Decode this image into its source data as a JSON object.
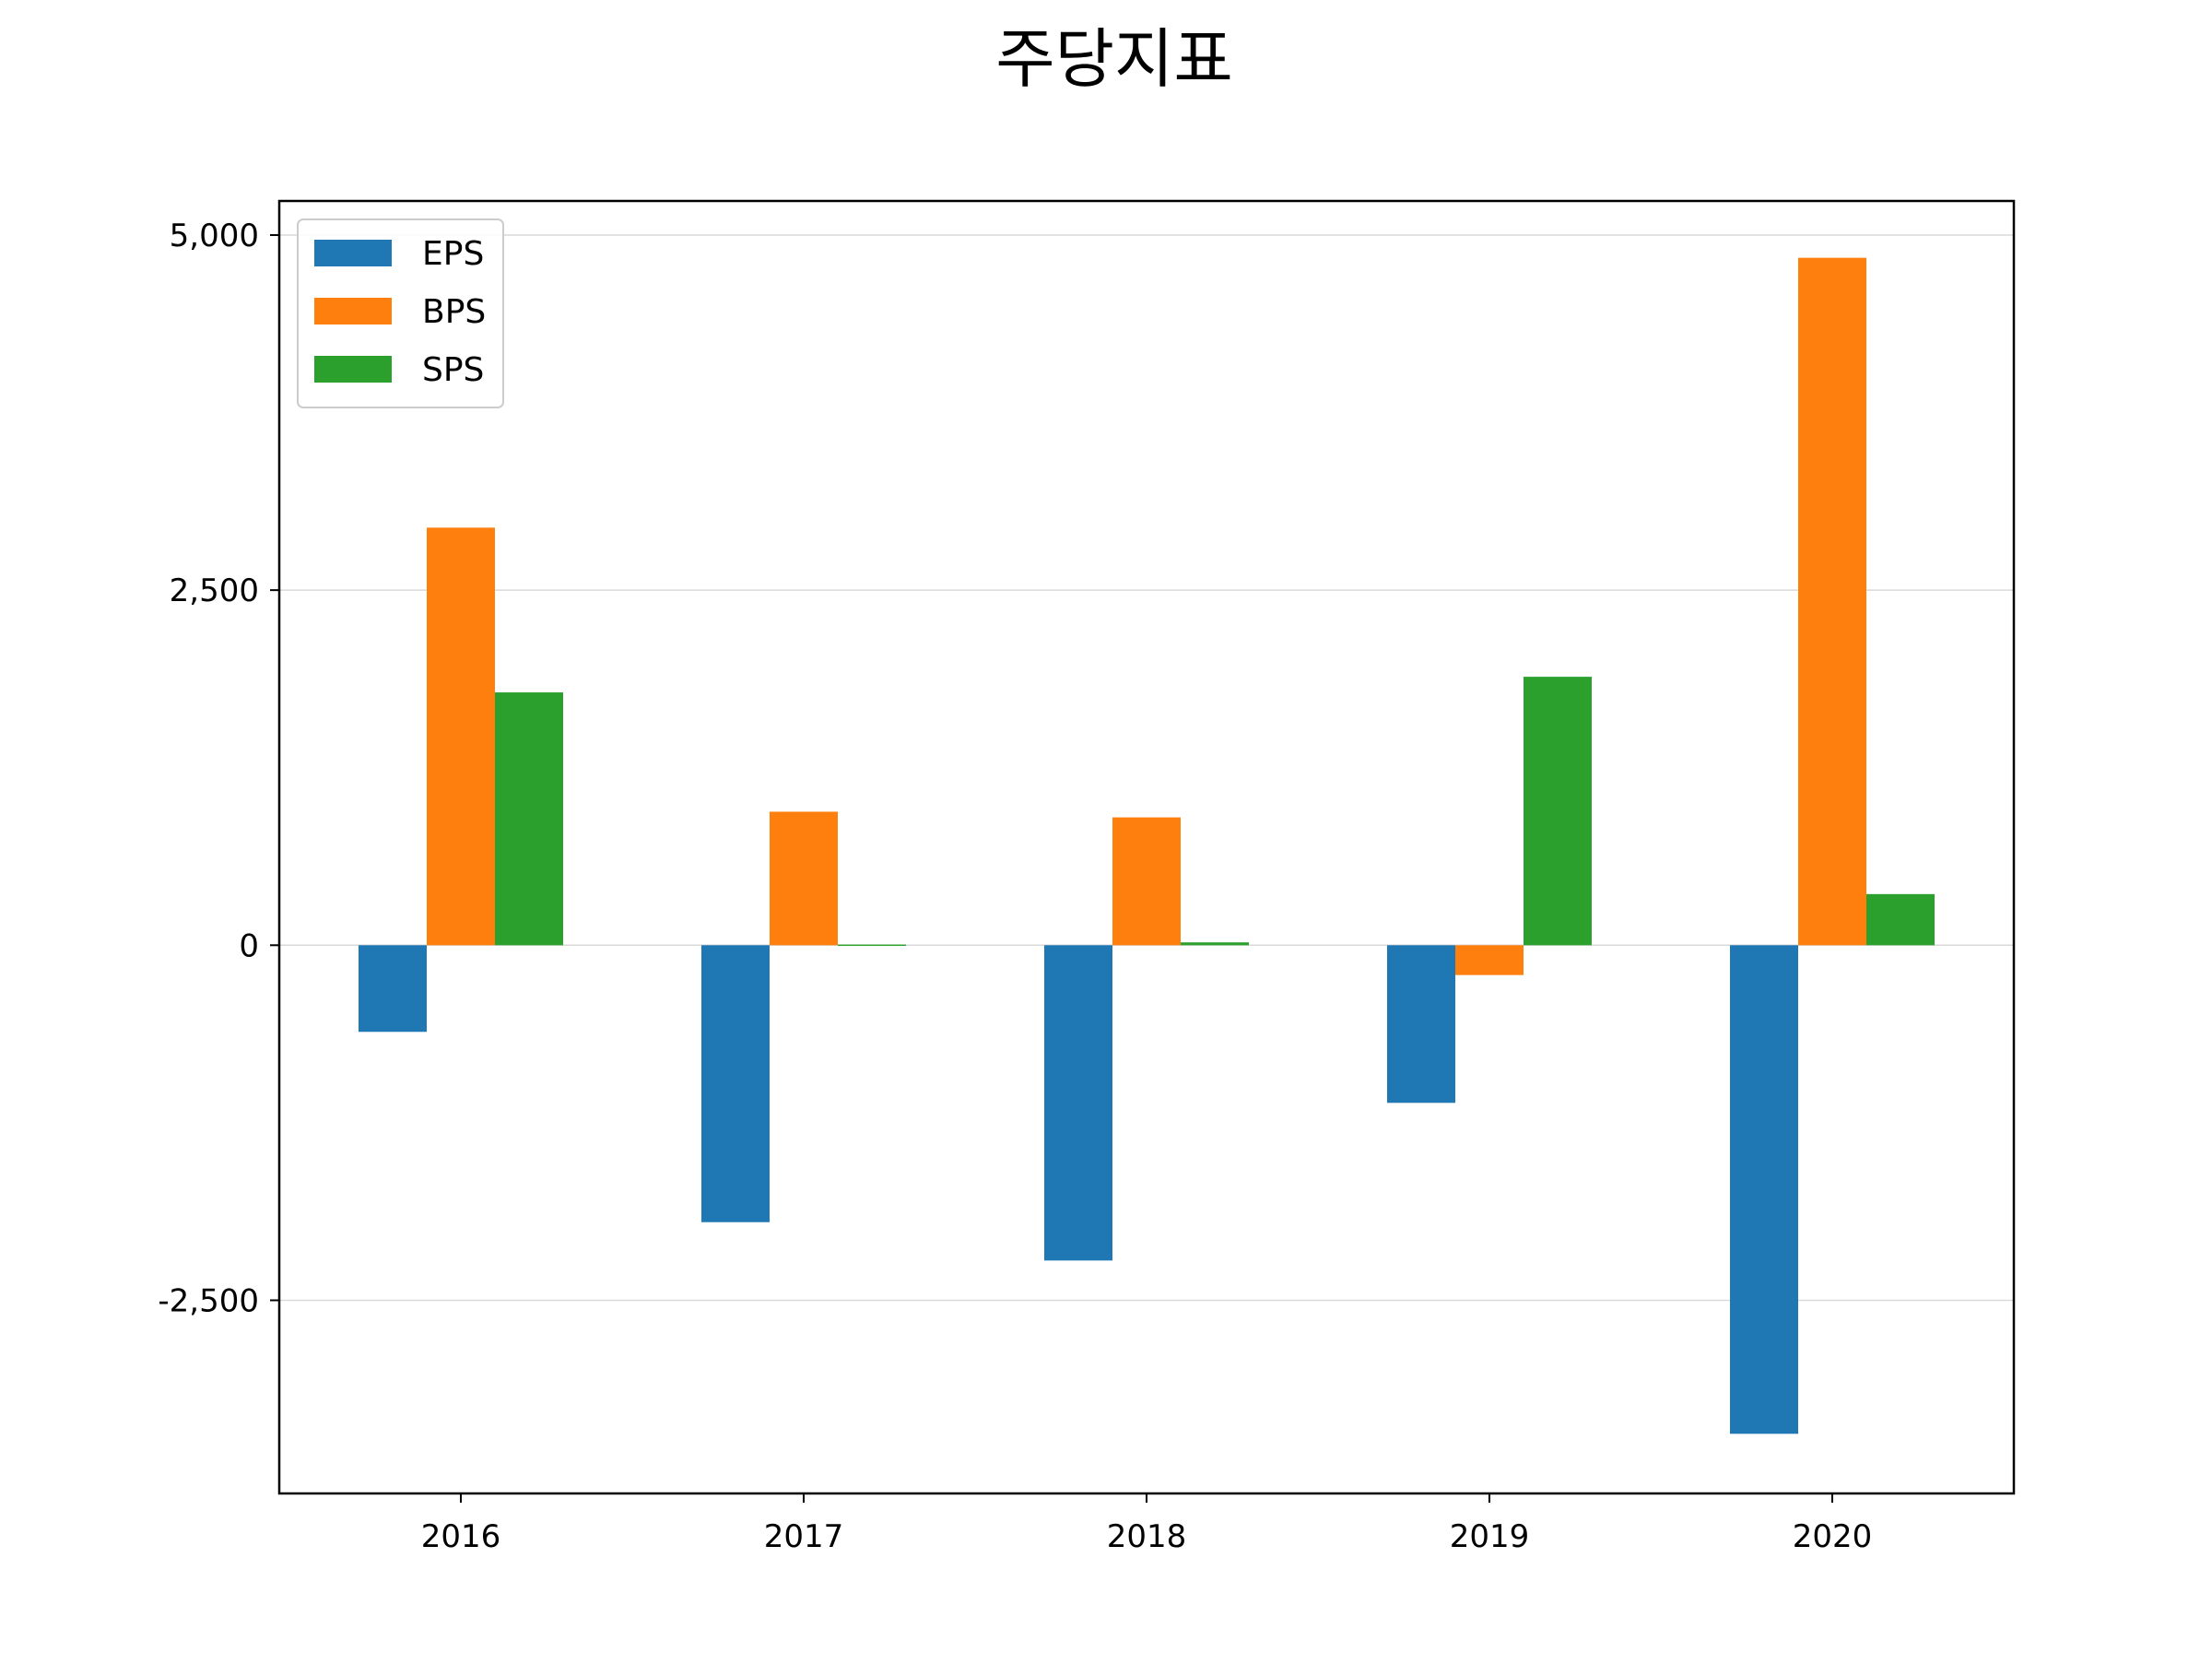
{
  "chart_data": {
    "type": "bar",
    "title": "주당지표",
    "xlabel": "",
    "ylabel": "",
    "categories": [
      "2016",
      "2017",
      "2018",
      "2019",
      "2020"
    ],
    "series": [
      {
        "name": "EPS",
        "color": "#1f77b4",
        "values": [
          -610,
          -1950,
          -2220,
          -1110,
          -3440
        ]
      },
      {
        "name": "BPS",
        "color": "#ff7f0e",
        "values": [
          2940,
          940,
          900,
          -210,
          4840
        ]
      },
      {
        "name": "SPS",
        "color": "#2ca02c",
        "values": [
          1780,
          0,
          20,
          1890,
          360
        ]
      }
    ],
    "ylim": [
      -3860,
      5240
    ],
    "yticks": [
      -2500,
      0,
      2500,
      5000
    ],
    "ytick_labels": [
      "-2,500",
      "0",
      "2,500",
      "5,000"
    ],
    "grid": "y",
    "legend_position": "top-left"
  }
}
